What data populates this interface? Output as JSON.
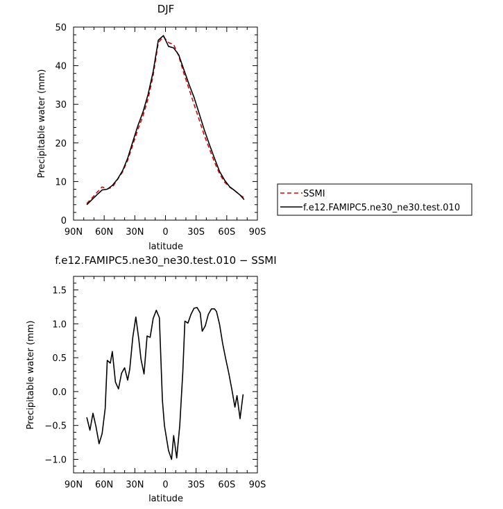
{
  "chart_data": [
    {
      "type": "line",
      "title": "DJF",
      "xlabel": "latitude",
      "ylabel": "Precipitable water (mm)",
      "xlim": [
        90,
        -90
      ],
      "ylim": [
        0,
        50
      ],
      "xticks": [
        90,
        60,
        30,
        0,
        -30,
        -60,
        -90
      ],
      "xtick_labels": [
        "90N",
        "60N",
        "30N",
        "0",
        "30S",
        "60S",
        "90S"
      ],
      "yticks": [
        0,
        10,
        20,
        30,
        40,
        50
      ],
      "ytick_labels": [
        "0",
        "10",
        "20",
        "30",
        "40",
        "50"
      ],
      "legend_position": "right",
      "series": [
        {
          "name": "SSMI",
          "color": "#e00000",
          "dash": "dashed",
          "x": [
            77,
            72,
            67,
            62,
            57,
            52,
            47,
            42,
            37,
            32,
            27,
            22,
            17,
            12,
            7,
            2,
            -3,
            -8,
            -13,
            -18,
            -23,
            -28,
            -33,
            -38,
            -43,
            -48,
            -53,
            -58,
            -63,
            -68,
            -73,
            -77
          ],
          "y": [
            4.3,
            5.7,
            7.2,
            8.6,
            8.1,
            8.5,
            10.5,
            12.5,
            15.5,
            19.5,
            23.5,
            27.0,
            31.5,
            37.5,
            46.0,
            47.5,
            46.0,
            45.5,
            42.5,
            38.0,
            34.0,
            30.0,
            26.0,
            22.0,
            18.5,
            15.0,
            12.0,
            9.8,
            8.5,
            7.6,
            6.5,
            5.8
          ]
        },
        {
          "name": "f.e12.FAMIPC5.ne30_ne30.test.010",
          "color": "#000000",
          "dash": "solid",
          "x": [
            77,
            72,
            67,
            62,
            57,
            52,
            47,
            42,
            37,
            32,
            27,
            22,
            17,
            12,
            7,
            2,
            -3,
            -8,
            -13,
            -18,
            -23,
            -28,
            -33,
            -38,
            -43,
            -48,
            -53,
            -58,
            -63,
            -68,
            -73,
            -77
          ],
          "y": [
            4.0,
            5.3,
            6.6,
            7.8,
            8.0,
            9.0,
            10.6,
            12.8,
            16.0,
            20.3,
            24.5,
            28.0,
            32.6,
            38.5,
            46.6,
            47.8,
            45.0,
            44.6,
            42.8,
            39.0,
            35.2,
            31.8,
            27.6,
            23.4,
            19.6,
            16.0,
            12.6,
            10.3,
            8.6,
            7.6,
            6.5,
            5.3
          ]
        }
      ]
    },
    {
      "type": "line",
      "title": "f.e12.FAMIPC5.ne30_ne30.test.010 − SSMI",
      "xlabel": "latitude",
      "ylabel": "Precipitable water (mm)",
      "xlim": [
        90,
        -90
      ],
      "ylim": [
        -1.2,
        1.7
      ],
      "xticks": [
        90,
        60,
        30,
        0,
        -30,
        -60,
        -90
      ],
      "xtick_labels": [
        "90N",
        "60N",
        "30N",
        "0",
        "30S",
        "60S",
        "90S"
      ],
      "yticks": [
        -1.0,
        -0.5,
        0.0,
        0.5,
        1.0,
        1.5
      ],
      "ytick_labels": [
        "−1.0",
        "−0.5",
        "0.0",
        "0.5",
        "1.0",
        "1.5"
      ],
      "series": [
        {
          "color": "#000000",
          "dash": "solid",
          "x": [
            77,
            74,
            71,
            68,
            65,
            62,
            59,
            57,
            54,
            52,
            49,
            46,
            43,
            40,
            37,
            35,
            32,
            29,
            26,
            24,
            21,
            18,
            15,
            12,
            9,
            6,
            3,
            1,
            -3,
            -6,
            -8,
            -11,
            -14,
            -17,
            -19,
            -22,
            -25,
            -28,
            -31,
            -34,
            -36,
            -39,
            -42,
            -45,
            -48,
            -50,
            -53,
            -56,
            -59,
            -62,
            -65,
            -68,
            -70,
            -73,
            -76
          ],
          "y": [
            -0.38,
            -0.57,
            -0.32,
            -0.52,
            -0.77,
            -0.62,
            -0.25,
            0.46,
            0.42,
            0.59,
            0.14,
            0.04,
            0.27,
            0.35,
            0.17,
            0.33,
            0.8,
            1.1,
            0.76,
            0.48,
            0.26,
            0.82,
            0.8,
            1.08,
            1.2,
            1.09,
            -0.13,
            -0.5,
            -0.87,
            -1.0,
            -0.65,
            -0.98,
            -0.5,
            0.29,
            1.04,
            1.01,
            1.14,
            1.23,
            1.24,
            1.16,
            0.89,
            0.97,
            1.14,
            1.22,
            1.22,
            1.18,
            0.99,
            0.71,
            0.48,
            0.27,
            0.03,
            -0.23,
            -0.06,
            -0.4,
            -0.04
          ]
        }
      ]
    }
  ]
}
